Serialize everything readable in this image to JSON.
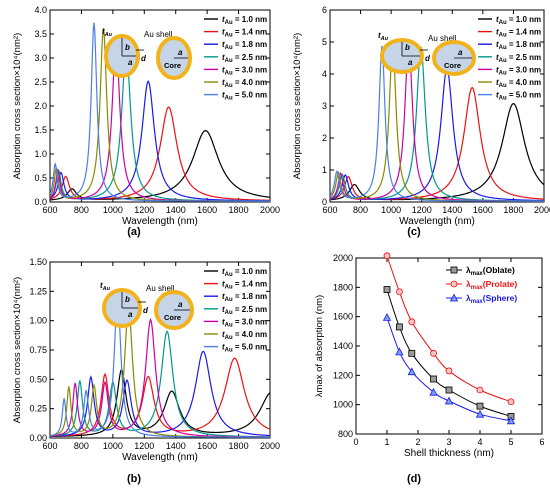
{
  "figure": {
    "panel_labels": [
      "(a)",
      "(b)",
      "(c)",
      "(d)"
    ]
  },
  "chart_data": [
    {
      "panel": "(a)",
      "type": "line",
      "xlabel": "Wavelength (nm)",
      "ylabel": "Absorption cross section×10⁴(nm²)",
      "xlim": [
        600,
        2000
      ],
      "ylim": [
        0,
        4.0
      ],
      "xticks": [
        600,
        800,
        1000,
        1200,
        1400,
        1600,
        1800,
        2000
      ],
      "yticks": [
        0.0,
        0.5,
        1.0,
        1.5,
        2.0,
        2.5,
        3.0,
        3.5,
        4.0
      ],
      "ytick_labels": [
        "0.0",
        "0.5",
        "1.0",
        "1.5",
        "2.0",
        "2.5",
        "3.0",
        "3.5",
        "4.0"
      ],
      "legend_position": "top-right",
      "grid": false,
      "inset": {
        "shell_label": "Au shell",
        "core_label": "Core",
        "tau_label": "t",
        "tau_sub": "Au",
        "b_label": "b",
        "a_label": "a",
        "d_label": "d",
        "shape": "oblate"
      },
      "series": [
        {
          "name": "1.0 nm",
          "color": "#000000",
          "peaks": [
            {
              "x": 1590,
              "y": 1.47,
              "w": 100
            },
            {
              "x": 740,
              "y": 0.24,
              "w": 35
            }
          ]
        },
        {
          "name": "1.4 nm",
          "color": "#ee1111",
          "peaks": [
            {
              "x": 1355,
              "y": 1.96,
              "w": 65
            },
            {
              "x": 700,
              "y": 0.5,
              "w": 28
            }
          ]
        },
        {
          "name": "1.8 nm",
          "color": "#1a1aee",
          "peaks": [
            {
              "x": 1225,
              "y": 2.5,
              "w": 48
            },
            {
              "x": 670,
              "y": 0.58,
              "w": 22
            }
          ]
        },
        {
          "name": "2.5 nm",
          "color": "#009a8a",
          "peaks": [
            {
              "x": 1085,
              "y": 3.13,
              "w": 35
            },
            {
              "x": 655,
              "y": 0.62,
              "w": 18
            }
          ]
        },
        {
          "name": "3.0 nm",
          "color": "#cc00aa",
          "peaks": [
            {
              "x": 1020,
              "y": 3.3,
              "w": 30
            },
            {
              "x": 650,
              "y": 0.62,
              "w": 16
            }
          ]
        },
        {
          "name": "4.0 nm",
          "color": "#8a8a00",
          "peaks": [
            {
              "x": 940,
              "y": 3.6,
              "w": 26
            },
            {
              "x": 640,
              "y": 0.68,
              "w": 15
            }
          ]
        },
        {
          "name": "5.0 nm",
          "color": "#4a7fe6",
          "peaks": [
            {
              "x": 880,
              "y": 3.72,
              "w": 22
            },
            {
              "x": 633,
              "y": 0.76,
              "w": 15
            }
          ]
        }
      ]
    },
    {
      "panel": "(c)",
      "type": "line",
      "xlabel": "Wavelength (nm)",
      "ylabel": "Absorption cross section×10⁴(nm²)",
      "xlim": [
        600,
        2000
      ],
      "ylim": [
        0,
        6
      ],
      "xticks": [
        600,
        800,
        1000,
        1200,
        1400,
        1600,
        1800,
        2000
      ],
      "yticks": [
        0,
        1,
        2,
        3,
        4,
        5,
        6
      ],
      "ytick_labels": [
        "0",
        "1",
        "2",
        "3",
        "4",
        "5",
        "6"
      ],
      "legend_position": "top-right",
      "grid": false,
      "inset": {
        "shell_label": "Au shell",
        "core_label": "Core",
        "tau_label": "t",
        "tau_sub": "Au",
        "b_label": "b",
        "a_label": "a",
        "d_label": "d",
        "shape": "prolate"
      },
      "series": [
        {
          "name": "1.0 nm",
          "color": "#000000",
          "peaks": [
            {
              "x": 1800,
              "y": 3.05,
              "w": 90
            },
            {
              "x": 760,
              "y": 0.5,
              "w": 40
            }
          ]
        },
        {
          "name": "1.4 nm",
          "color": "#ee1111",
          "peaks": [
            {
              "x": 1530,
              "y": 3.55,
              "w": 65
            },
            {
              "x": 720,
              "y": 0.75,
              "w": 30
            }
          ]
        },
        {
          "name": "1.8 nm",
          "color": "#1a1aee",
          "peaks": [
            {
              "x": 1365,
              "y": 4.15,
              "w": 48
            },
            {
              "x": 700,
              "y": 0.8,
              "w": 25
            }
          ]
        },
        {
          "name": "2.5 nm",
          "color": "#009a8a",
          "peaks": [
            {
              "x": 1195,
              "y": 4.82,
              "w": 35
            },
            {
              "x": 680,
              "y": 0.82,
              "w": 22
            }
          ]
        },
        {
          "name": "3.0 nm",
          "color": "#cc00aa",
          "peaks": [
            {
              "x": 1115,
              "y": 5.0,
              "w": 30
            },
            {
              "x": 670,
              "y": 0.85,
              "w": 20
            }
          ]
        },
        {
          "name": "4.0 nm",
          "color": "#8a8a00",
          "peaks": [
            {
              "x": 1010,
              "y": 4.95,
              "w": 27
            },
            {
              "x": 655,
              "y": 0.88,
              "w": 20
            }
          ]
        },
        {
          "name": "5.0 nm",
          "color": "#4a7fe6",
          "peaks": [
            {
              "x": 940,
              "y": 4.85,
              "w": 24
            },
            {
              "x": 645,
              "y": 0.9,
              "w": 20
            }
          ]
        }
      ]
    },
    {
      "panel": "(b)",
      "type": "line",
      "xlabel": "Wavelength (nm)",
      "ylabel": "Absorption cross section×10⁴(nm²)",
      "xlim": [
        600,
        2000
      ],
      "ylim": [
        0,
        1.5
      ],
      "xticks": [
        600,
        800,
        1000,
        1200,
        1400,
        1600,
        1800,
        2000
      ],
      "yticks": [
        0.0,
        0.25,
        0.5,
        0.75,
        1.0,
        1.25,
        1.5
      ],
      "ytick_labels": [
        "0.00",
        "0.25",
        "0.50",
        "0.75",
        "1.00",
        "1.25",
        "1.50"
      ],
      "legend_position": "top-right",
      "grid": false,
      "inset": {
        "shell_label": "Au shell",
        "core_label": "Core",
        "tau_label": "t",
        "tau_sub": "Au",
        "b_label": "b",
        "a_label": "a",
        "d_label": "d",
        "shape": "sphere"
      },
      "series": [
        {
          "name": "1.0 nm",
          "color": "#000000",
          "peaks": [
            {
              "x": 2010,
              "y": 0.38,
              "w": 90
            },
            {
              "x": 1375,
              "y": 0.38,
              "w": 60
            },
            {
              "x": 1055,
              "y": 0.56,
              "w": 35
            }
          ]
        },
        {
          "name": "1.4 nm",
          "color": "#ee1111",
          "peaks": [
            {
              "x": 1775,
              "y": 0.67,
              "w": 75
            },
            {
              "x": 1225,
              "y": 0.5,
              "w": 45
            },
            {
              "x": 950,
              "y": 0.52,
              "w": 30
            }
          ]
        },
        {
          "name": "1.8 nm",
          "color": "#1a1aee",
          "peaks": [
            {
              "x": 1575,
              "y": 0.73,
              "w": 60
            },
            {
              "x": 1090,
              "y": 0.47,
              "w": 32
            },
            {
              "x": 860,
              "y": 0.5,
              "w": 25
            }
          ]
        },
        {
          "name": "2.5 nm",
          "color": "#009a8a",
          "peaks": [
            {
              "x": 1345,
              "y": 0.9,
              "w": 45
            },
            {
              "x": 1000,
              "y": 0.45,
              "w": 28
            },
            {
              "x": 790,
              "y": 0.47,
              "w": 20
            }
          ]
        },
        {
          "name": "3.0 nm",
          "color": "#cc00aa",
          "peaks": [
            {
              "x": 1240,
              "y": 1.0,
              "w": 38
            },
            {
              "x": 950,
              "y": 0.45,
              "w": 25
            },
            {
              "x": 760,
              "y": 0.45,
              "w": 18
            }
          ]
        },
        {
          "name": "4.0 nm",
          "color": "#8a8a00",
          "peaks": [
            {
              "x": 1100,
              "y": 1.12,
              "w": 30
            },
            {
              "x": 880,
              "y": 0.42,
              "w": 20
            },
            {
              "x": 720,
              "y": 0.42,
              "w": 16
            }
          ]
        },
        {
          "name": "5.0 nm",
          "color": "#4a7fe6",
          "peaks": [
            {
              "x": 1030,
              "y": 1.22,
              "w": 25
            },
            {
              "x": 830,
              "y": 0.38,
              "w": 18
            },
            {
              "x": 690,
              "y": 0.32,
              "w": 14
            }
          ]
        }
      ]
    },
    {
      "panel": "(d)",
      "type": "line",
      "xlabel": "Shell thickness (nm)",
      "ylabel": "λmax of absorption (nm)",
      "xlim": [
        0,
        6
      ],
      "ylim": [
        800,
        2000
      ],
      "xticks": [
        0,
        1,
        2,
        3,
        4,
        5,
        6
      ],
      "yticks": [
        800,
        1000,
        1200,
        1400,
        1600,
        1800,
        2000
      ],
      "legend_position": "top-right",
      "grid": false,
      "x": [
        1.0,
        1.4,
        1.8,
        2.5,
        3.0,
        4.0,
        5.0
      ],
      "series": [
        {
          "name": "λmax(Oblate)",
          "name_main": "λ",
          "name_sub": "max",
          "name_suffix": "(Oblate)",
          "color": "#000000",
          "marker": "square",
          "values": [
            1785,
            1530,
            1350,
            1175,
            1100,
            990,
            920
          ]
        },
        {
          "name": "λmax(Prolate)",
          "name_main": "λ",
          "name_sub": "max",
          "name_suffix": "(Prolate)",
          "color": "#ee1111",
          "marker": "circle",
          "values": [
            2015,
            1770,
            1565,
            1350,
            1230,
            1100,
            1020
          ]
        },
        {
          "name": "λmax(Sphere)",
          "name_main": "λ",
          "name_sub": "max",
          "name_suffix": "(Sphere)",
          "color": "#1a1aee",
          "marker": "triangle",
          "values": [
            1595,
            1360,
            1225,
            1085,
            1025,
            935,
            890
          ]
        }
      ]
    }
  ]
}
